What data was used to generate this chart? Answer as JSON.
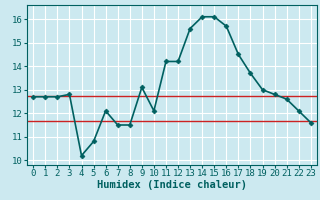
{
  "x": [
    0,
    1,
    2,
    3,
    4,
    5,
    6,
    7,
    8,
    9,
    10,
    11,
    12,
    13,
    14,
    15,
    16,
    17,
    18,
    19,
    20,
    21,
    22,
    23
  ],
  "y": [
    12.7,
    12.7,
    12.7,
    12.8,
    10.2,
    10.8,
    12.1,
    11.5,
    11.5,
    13.1,
    12.1,
    14.2,
    14.2,
    15.6,
    16.1,
    16.1,
    15.7,
    14.5,
    13.7,
    13.0,
    12.8,
    12.6,
    12.1,
    11.6
  ],
  "hline1_y": 12.75,
  "hline2_y": 11.65,
  "bg_color": "#cce9f0",
  "grid_color": "#ffffff",
  "line_color": "#006060",
  "hline_color": "#cc2222",
  "xlabel": "Humidex (Indice chaleur)",
  "ylim": [
    9.8,
    16.6
  ],
  "xlim": [
    -0.5,
    23.5
  ],
  "yticks": [
    10,
    11,
    12,
    13,
    14,
    15,
    16
  ],
  "xticks": [
    0,
    1,
    2,
    3,
    4,
    5,
    6,
    7,
    8,
    9,
    10,
    11,
    12,
    13,
    14,
    15,
    16,
    17,
    18,
    19,
    20,
    21,
    22,
    23
  ],
  "tick_fontsize": 6.5,
  "xlabel_fontsize": 7.5,
  "marker": "D",
  "markersize": 2.5,
  "linewidth": 1.2
}
